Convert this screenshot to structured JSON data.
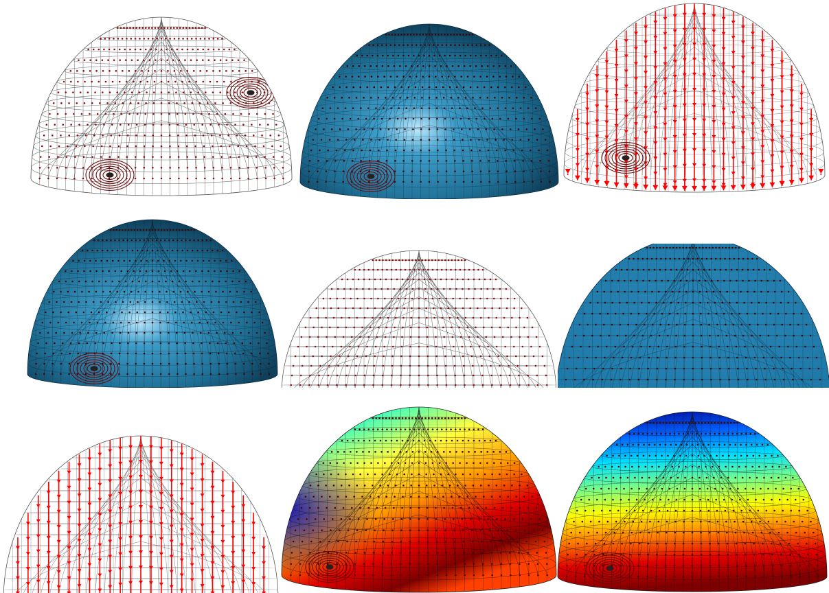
{
  "figure": {
    "colors": {
      "background": "#ffffff",
      "mesh_line": "#555555",
      "node_dot": "#8a1010",
      "shell_blue": "#1f6f95",
      "shell_highlight": "#bfeaff",
      "load_arrow": "#ff0000",
      "contour_low": "#00008f",
      "contour_high": "#7f0000"
    },
    "panels": [
      {
        "name": "panel-dome-wireframe-oblique",
        "kind": "wire",
        "icon": "wireframe-dome-icon"
      },
      {
        "name": "panel-dome-shaded-oblique",
        "kind": "shaded",
        "icon": "shaded-dome-icon"
      },
      {
        "name": "panel-dome-loads-oblique",
        "kind": "loads",
        "icon": "load-arrows-icon"
      },
      {
        "name": "panel-dome-shaded-tilted",
        "kind": "shaded",
        "icon": "shaded-dome-icon"
      },
      {
        "name": "panel-dome-wireframe-front",
        "kind": "wire",
        "icon": "wireframe-dome-icon"
      },
      {
        "name": "panel-dome-shaded-front",
        "kind": "flat",
        "icon": "shaded-dome-icon"
      },
      {
        "name": "panel-dome-loads-front",
        "kind": "loads",
        "icon": "load-arrows-icon"
      },
      {
        "name": "panel-dome-contour-a",
        "kind": "contourA",
        "icon": "contour-map-icon"
      },
      {
        "name": "panel-dome-contour-b",
        "kind": "contourB",
        "icon": "contour-map-icon"
      }
    ]
  }
}
